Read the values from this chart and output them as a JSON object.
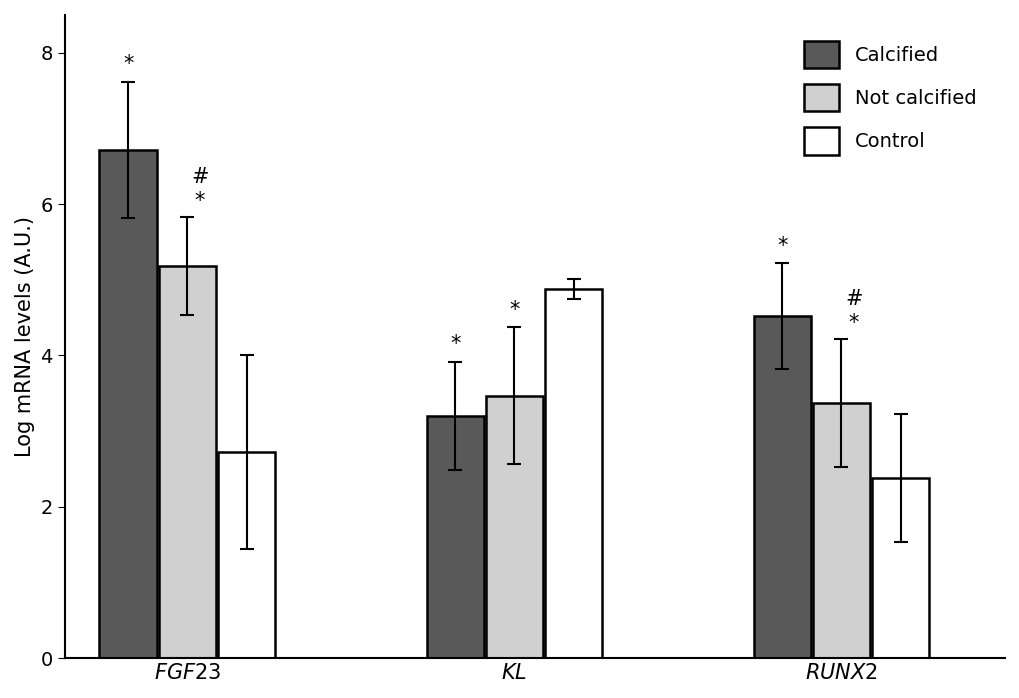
{
  "groups": [
    "FGF23",
    "KL",
    "RUNX2"
  ],
  "categories": [
    "Calcified",
    "Not calcified",
    "Control"
  ],
  "bar_colors": [
    "#595959",
    "#d0d0d0",
    "#ffffff"
  ],
  "bar_edgecolor": "#000000",
  "bar_linewidth": 1.8,
  "values": [
    [
      6.72,
      5.18,
      2.72
    ],
    [
      3.2,
      3.47,
      4.88
    ],
    [
      4.52,
      3.37,
      2.38
    ]
  ],
  "errors": [
    [
      0.9,
      0.65,
      1.28
    ],
    [
      0.72,
      0.9,
      0.13
    ],
    [
      0.7,
      0.85,
      0.85
    ]
  ],
  "ylabel": "Log mRNA levels (A.U.)",
  "ylim": [
    0,
    8.5
  ],
  "yticks": [
    0,
    2,
    4,
    6,
    8
  ],
  "bar_width": 0.28,
  "group_centers": [
    1.0,
    2.6,
    4.2
  ],
  "group_offsets": [
    -0.29,
    0.0,
    0.29
  ],
  "legend_labels": [
    "Calcified",
    "Not calcified",
    "Control"
  ],
  "legend_colors": [
    "#595959",
    "#d0d0d0",
    "#ffffff"
  ],
  "background_color": "#ffffff",
  "error_capsize": 5,
  "error_linewidth": 1.5,
  "fontsize": 14,
  "tick_fontsize": 14,
  "label_fontsize": 15,
  "annotation_fontsize": 15,
  "xlim": [
    0.4,
    5.0
  ]
}
